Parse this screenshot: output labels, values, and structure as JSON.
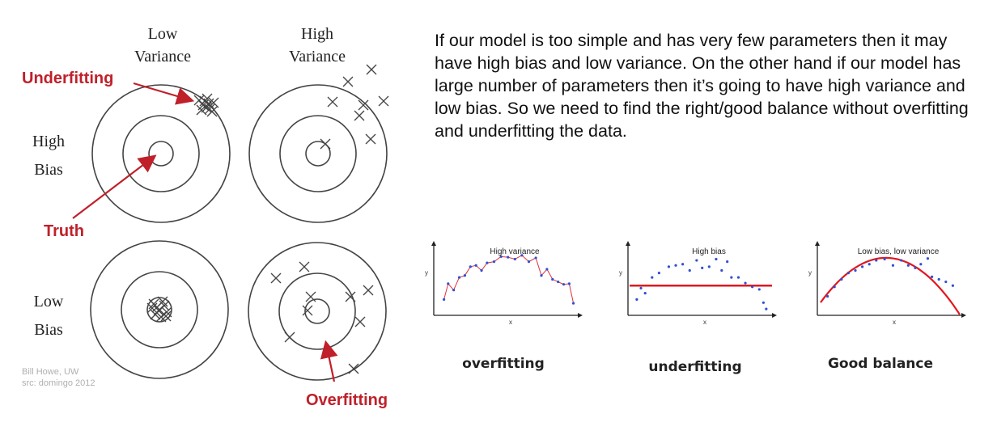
{
  "diagram": {
    "col_headers": [
      {
        "line1": "Low",
        "line2": "Variance"
      },
      {
        "line1": "High",
        "line2": "Variance"
      }
    ],
    "row_headers": [
      {
        "line1": "High",
        "line2": "Bias"
      },
      {
        "line1": "Low",
        "line2": "Bias"
      }
    ],
    "labels": {
      "underfitting": "Underfitting",
      "truth": "Truth",
      "overfitting": "Overfitting"
    },
    "credit": {
      "line1": "Bill Howe, UW",
      "line2": "src: domingo 2012"
    },
    "colors": {
      "accent": "#c0202a",
      "lines": "#555555"
    }
  },
  "paragraph": "If our model is too simple and has very few parameters then it may have high bias and low variance. On the other hand if our model has large number of parameters then it’s going to have high variance and low bias. So we need to find the right/good balance without overfitting and underfitting the data.",
  "chart_data": [
    {
      "type": "scatter",
      "title": "High variance",
      "xlabel": "x",
      "ylabel": "y",
      "caption": "overfitting",
      "fit": "interpolating line",
      "points": [
        [
          0.05,
          0.2
        ],
        [
          0.08,
          0.45
        ],
        [
          0.12,
          0.35
        ],
        [
          0.16,
          0.55
        ],
        [
          0.2,
          0.58
        ],
        [
          0.24,
          0.72
        ],
        [
          0.28,
          0.74
        ],
        [
          0.32,
          0.66
        ],
        [
          0.36,
          0.78
        ],
        [
          0.41,
          0.8
        ],
        [
          0.46,
          0.88
        ],
        [
          0.51,
          0.87
        ],
        [
          0.56,
          0.84
        ],
        [
          0.61,
          0.9
        ],
        [
          0.66,
          0.8
        ],
        [
          0.71,
          0.86
        ],
        [
          0.75,
          0.58
        ],
        [
          0.79,
          0.68
        ],
        [
          0.83,
          0.52
        ],
        [
          0.87,
          0.48
        ],
        [
          0.91,
          0.44
        ],
        [
          0.95,
          0.45
        ],
        [
          0.98,
          0.14
        ]
      ]
    },
    {
      "type": "scatter",
      "title": "High bias",
      "xlabel": "x",
      "ylabel": "y",
      "caption": "underfitting",
      "fit": "horizontal line",
      "points": [
        [
          0.04,
          0.2
        ],
        [
          0.07,
          0.38
        ],
        [
          0.1,
          0.3
        ],
        [
          0.15,
          0.55
        ],
        [
          0.2,
          0.62
        ],
        [
          0.27,
          0.72
        ],
        [
          0.32,
          0.74
        ],
        [
          0.37,
          0.76
        ],
        [
          0.42,
          0.66
        ],
        [
          0.47,
          0.82
        ],
        [
          0.51,
          0.7
        ],
        [
          0.56,
          0.72
        ],
        [
          0.61,
          0.84
        ],
        [
          0.65,
          0.66
        ],
        [
          0.69,
          0.8
        ],
        [
          0.72,
          0.55
        ],
        [
          0.77,
          0.55
        ],
        [
          0.82,
          0.46
        ],
        [
          0.87,
          0.4
        ],
        [
          0.92,
          0.36
        ],
        [
          0.95,
          0.15
        ],
        [
          0.97,
          0.05
        ]
      ]
    },
    {
      "type": "scatter",
      "title": "Low bias, low variance",
      "xlabel": "x",
      "ylabel": "y",
      "caption": "Good balance",
      "fit": "parabola",
      "points": [
        [
          0.05,
          0.25
        ],
        [
          0.1,
          0.4
        ],
        [
          0.15,
          0.52
        ],
        [
          0.2,
          0.62
        ],
        [
          0.25,
          0.66
        ],
        [
          0.3,
          0.72
        ],
        [
          0.35,
          0.76
        ],
        [
          0.4,
          0.82
        ],
        [
          0.46,
          0.84
        ],
        [
          0.52,
          0.74
        ],
        [
          0.58,
          0.82
        ],
        [
          0.63,
          0.74
        ],
        [
          0.68,
          0.7
        ],
        [
          0.72,
          0.76
        ],
        [
          0.77,
          0.85
        ],
        [
          0.8,
          0.56
        ],
        [
          0.85,
          0.52
        ],
        [
          0.9,
          0.48
        ],
        [
          0.95,
          0.42
        ]
      ]
    }
  ]
}
